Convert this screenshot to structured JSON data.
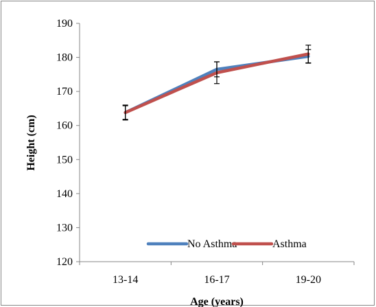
{
  "chart_data": {
    "type": "line",
    "categories": [
      "13-14",
      "16-17",
      "19-20"
    ],
    "series": [
      {
        "name": "No Asthma",
        "values": [
          163.8,
          176.5,
          180.3
        ],
        "error": [
          2.2,
          2.2,
          2.0
        ],
        "color": "#4F81BD"
      },
      {
        "name": "Asthma",
        "values": [
          163.8,
          175.5,
          181.0
        ],
        "error": [
          2.0,
          3.2,
          2.6
        ],
        "color": "#C0504D"
      }
    ],
    "xlabel": "Age (years)",
    "ylabel": "Height (cm)",
    "ylim": [
      120,
      190
    ],
    "yticks": [
      120,
      130,
      140,
      150,
      160,
      170,
      180,
      190
    ],
    "grid": false,
    "legend_position": "bottom-right inside plot"
  }
}
